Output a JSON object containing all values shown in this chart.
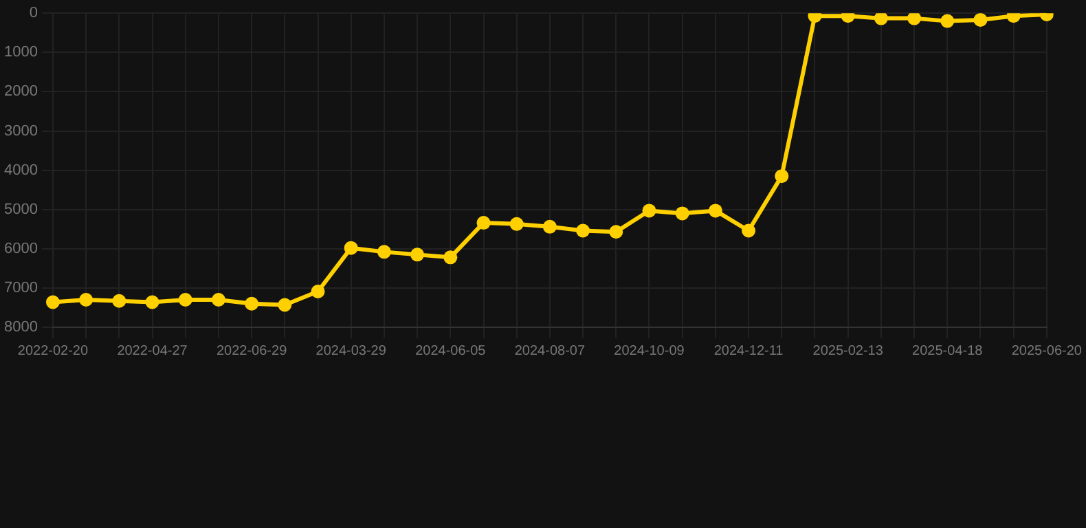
{
  "chart_data": {
    "type": "line",
    "categories": [
      "2022-02-20",
      null,
      null,
      "2022-04-27",
      null,
      null,
      "2022-06-29",
      null,
      null,
      "2024-03-29",
      null,
      null,
      "2024-06-05",
      null,
      null,
      "2024-08-07",
      null,
      null,
      "2024-10-09",
      null,
      null,
      "2024-12-11",
      null,
      null,
      "2025-02-13",
      null,
      null,
      "2025-04-18",
      null,
      null,
      "2025-06-20"
    ],
    "series": [
      {
        "color": "#ffd000",
        "values": [
          7360,
          7300,
          7330,
          7360,
          7300,
          7300,
          7400,
          7430,
          7090,
          5980,
          6080,
          6150,
          6220,
          5340,
          5370,
          5440,
          5540,
          5570,
          5030,
          5100,
          5030,
          5540,
          4150,
          70,
          70,
          130,
          130,
          200,
          170,
          70,
          30
        ]
      }
    ],
    "ylim": [
      8000,
      0
    ],
    "yticks": [
      0,
      1000,
      2000,
      3000,
      4000,
      5000,
      6000,
      7000,
      8000
    ],
    "grid": true,
    "marker": "circle",
    "line_style": "solid",
    "legend": false
  }
}
